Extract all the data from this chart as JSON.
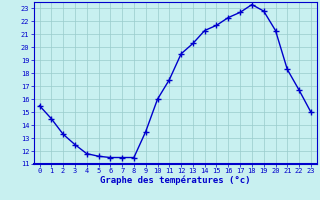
{
  "hours": [
    0,
    1,
    2,
    3,
    4,
    5,
    6,
    7,
    8,
    9,
    10,
    11,
    12,
    13,
    14,
    15,
    16,
    17,
    18,
    19,
    20,
    21,
    22,
    23
  ],
  "temps": [
    15.5,
    14.5,
    13.3,
    12.5,
    11.8,
    11.6,
    11.5,
    11.5,
    11.5,
    13.5,
    16.0,
    17.5,
    19.5,
    20.3,
    21.3,
    21.7,
    22.3,
    22.7,
    23.3,
    22.8,
    21.3,
    18.3,
    16.7,
    15.0
  ],
  "line_color": "#0000cc",
  "marker": "+",
  "bg_color": "#c8f0f0",
  "grid_color": "#99cccc",
  "xlabel": "Graphe des températures (°c)",
  "xlabel_color": "#0000cc",
  "tick_color": "#0000cc",
  "border_color": "#0000cc",
  "ylim": [
    11,
    23.5
  ],
  "xlim": [
    -0.5,
    23.5
  ],
  "yticks": [
    11,
    12,
    13,
    14,
    15,
    16,
    17,
    18,
    19,
    20,
    21,
    22,
    23
  ],
  "xticks": [
    0,
    1,
    2,
    3,
    4,
    5,
    6,
    7,
    8,
    9,
    10,
    11,
    12,
    13,
    14,
    15,
    16,
    17,
    18,
    19,
    20,
    21,
    22,
    23
  ],
  "linewidth": 1.0,
  "markersize": 4,
  "markeredgewidth": 1.0
}
